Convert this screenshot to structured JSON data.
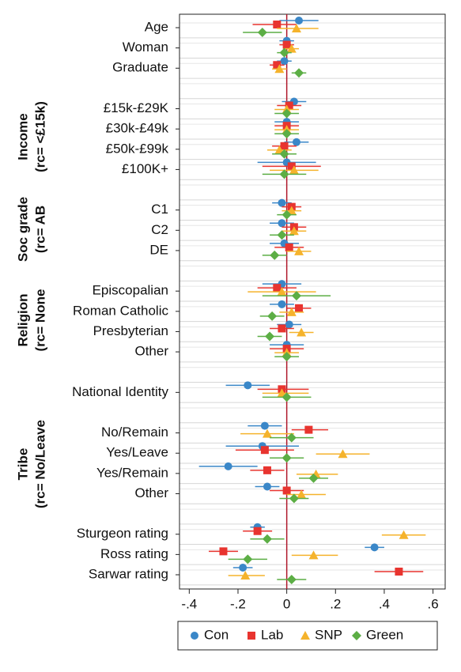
{
  "chart_data": {
    "type": "coefplot",
    "categories": [
      "Age",
      "Woman",
      "Graduate",
      null,
      "£15k-£29K",
      "£30k-£49k",
      "£50k-£99k",
      "£100K+",
      null,
      "C1",
      "C2",
      "DE",
      null,
      "Episcopalian",
      "Roman Catholic",
      "Presbyterian",
      "Other",
      null,
      "National Identity",
      null,
      "No/Remain",
      "Yes/Leave",
      "Yes/Remain",
      "Other",
      null,
      "Sturgeon rating",
      "Ross rating",
      "Sarwar rating"
    ],
    "groups": [
      [
        "Income",
        "(rc= <£15k)"
      ],
      [
        "Soc grade",
        "(rc= AB"
      ],
      [
        "Religion",
        "(rc= None"
      ],
      [
        "Tribe",
        "(rc= No/Leave"
      ]
    ],
    "series": [
      {
        "name": "Con",
        "color": "#3a87c8",
        "marker": "circle",
        "values": [
          0.05,
          0.0,
          -0.01,
          null,
          0.03,
          0.0,
          0.04,
          0.0,
          null,
          -0.02,
          -0.02,
          -0.01,
          null,
          -0.02,
          -0.02,
          0.01,
          0.0,
          null,
          -0.16,
          null,
          -0.09,
          -0.1,
          -0.24,
          -0.08,
          null,
          -0.12,
          0.36,
          -0.18
        ],
        "low": [
          -0.03,
          -0.03,
          -0.04,
          null,
          -0.02,
          -0.05,
          -0.01,
          -0.12,
          null,
          -0.06,
          -0.07,
          -0.07,
          null,
          -0.1,
          -0.07,
          -0.04,
          -0.07,
          null,
          -0.25,
          null,
          -0.16,
          -0.25,
          -0.36,
          -0.13,
          null,
          -0.15,
          0.32,
          -0.22
        ],
        "high": [
          0.13,
          0.03,
          0.02,
          null,
          0.08,
          0.05,
          0.09,
          0.12,
          null,
          0.02,
          0.03,
          0.05,
          null,
          0.06,
          0.03,
          0.06,
          0.07,
          null,
          -0.07,
          null,
          -0.02,
          0.05,
          -0.12,
          -0.03,
          null,
          -0.09,
          0.4,
          -0.14
        ]
      },
      {
        "name": "Lab",
        "color": "#e8342f",
        "marker": "square",
        "values": [
          -0.04,
          0.0,
          -0.04,
          null,
          0.01,
          0.0,
          -0.01,
          0.02,
          null,
          0.02,
          0.03,
          0.01,
          null,
          -0.04,
          0.05,
          -0.02,
          0.0,
          null,
          -0.02,
          null,
          0.09,
          -0.09,
          -0.08,
          0.0,
          null,
          -0.12,
          -0.26,
          0.46
        ],
        "low": [
          -0.14,
          -0.03,
          -0.07,
          null,
          -0.04,
          -0.05,
          -0.06,
          -0.1,
          null,
          -0.02,
          -0.02,
          -0.05,
          null,
          -0.12,
          0.0,
          -0.07,
          -0.07,
          null,
          -0.12,
          null,
          0.02,
          -0.21,
          -0.15,
          -0.07,
          null,
          -0.18,
          -0.32,
          0.36
        ],
        "high": [
          0.04,
          0.03,
          -0.01,
          null,
          0.06,
          0.05,
          0.04,
          0.14,
          null,
          0.06,
          0.08,
          0.07,
          null,
          0.04,
          0.1,
          0.03,
          0.07,
          null,
          0.09,
          null,
          0.17,
          0.03,
          -0.01,
          0.07,
          null,
          -0.06,
          -0.2,
          0.56
        ]
      },
      {
        "name": "SNP",
        "color": "#f5b32c",
        "marker": "triangle",
        "values": [
          0.04,
          0.02,
          -0.03,
          null,
          0.0,
          0.0,
          -0.03,
          0.03,
          null,
          0.02,
          0.03,
          0.05,
          null,
          -0.02,
          0.02,
          0.06,
          0.0,
          null,
          -0.02,
          null,
          -0.08,
          0.23,
          0.12,
          0.06,
          null,
          0.48,
          0.11,
          -0.17
        ],
        "low": [
          -0.04,
          -0.01,
          -0.06,
          null,
          -0.05,
          -0.05,
          -0.08,
          -0.07,
          null,
          -0.02,
          -0.02,
          0.0,
          null,
          -0.16,
          -0.03,
          0.01,
          -0.05,
          null,
          -0.1,
          null,
          -0.19,
          0.12,
          0.04,
          0.0,
          null,
          0.39,
          0.02,
          -0.24
        ],
        "high": [
          0.13,
          0.05,
          0.0,
          null,
          0.05,
          0.05,
          0.02,
          0.13,
          null,
          0.06,
          0.08,
          0.1,
          null,
          0.12,
          0.07,
          0.11,
          0.05,
          null,
          0.09,
          null,
          0.03,
          0.34,
          0.21,
          0.16,
          null,
          0.57,
          0.21,
          -0.09
        ]
      },
      {
        "name": "Green",
        "color": "#5cae45",
        "marker": "diamond",
        "values": [
          -0.1,
          -0.01,
          0.05,
          null,
          0.0,
          0.0,
          -0.01,
          -0.01,
          null,
          0.0,
          -0.02,
          -0.05,
          null,
          0.04,
          -0.06,
          -0.07,
          0.0,
          null,
          0.0,
          null,
          0.02,
          0.0,
          0.11,
          0.03,
          null,
          -0.08,
          -0.16,
          0.02
        ],
        "low": [
          -0.18,
          -0.04,
          0.02,
          null,
          -0.05,
          -0.05,
          -0.06,
          -0.1,
          null,
          -0.04,
          -0.07,
          -0.1,
          null,
          -0.1,
          -0.11,
          -0.12,
          -0.05,
          null,
          -0.1,
          null,
          -0.07,
          -0.07,
          0.05,
          -0.03,
          null,
          -0.15,
          -0.24,
          -0.04
        ],
        "high": [
          -0.02,
          0.02,
          0.08,
          null,
          0.05,
          0.05,
          0.04,
          0.08,
          null,
          0.04,
          0.03,
          0.0,
          null,
          0.18,
          -0.01,
          -0.02,
          0.05,
          null,
          0.1,
          null,
          0.11,
          0.07,
          0.17,
          0.09,
          null,
          -0.01,
          -0.08,
          0.08
        ]
      }
    ],
    "xlim": [
      -0.44,
      0.65
    ],
    "xticks": [
      {
        "value": -0.4,
        "label": "-.4"
      },
      {
        "value": -0.2,
        "label": "-.2"
      },
      0,
      {
        "value": 0.2,
        "label": ".2"
      },
      {
        "value": 0.4,
        "label": ".4"
      },
      {
        "value": 0.6,
        "label": ".6"
      }
    ],
    "refline": 0,
    "refline_color": "#b0182a",
    "grid": true,
    "legend": "bottom"
  }
}
